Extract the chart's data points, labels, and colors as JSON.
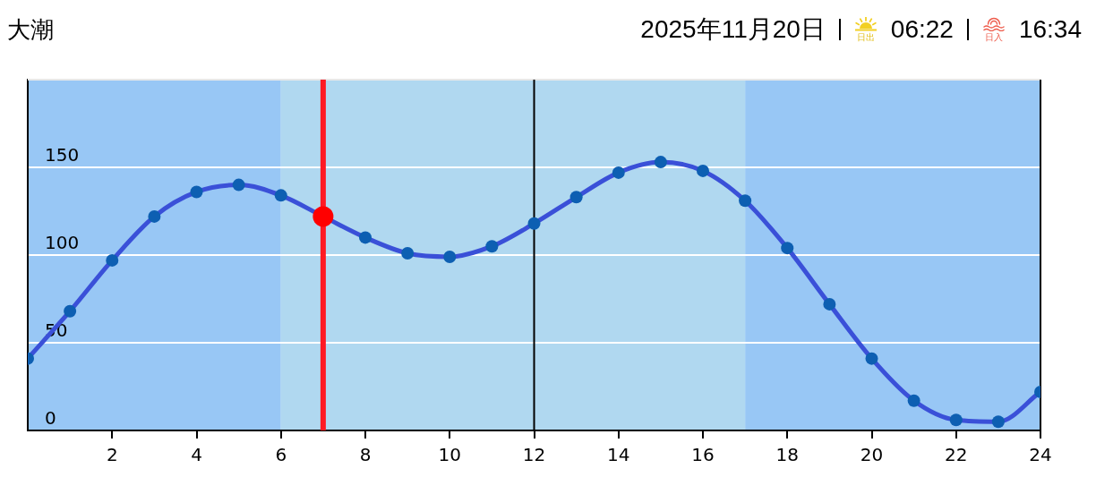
{
  "chart_data": {
    "type": "line",
    "title": "大潮",
    "subtitle": "2025年11月20日",
    "annotations": [
      "日出",
      "06:22",
      "日入",
      "16:34"
    ],
    "x": [
      0,
      1,
      2,
      3,
      4,
      5,
      6,
      7,
      8,
      9,
      10,
      11,
      12,
      13,
      14,
      15,
      16,
      17,
      18,
      19,
      20,
      21,
      22,
      23,
      24
    ],
    "values": [
      41,
      68,
      97,
      122,
      136,
      140,
      134,
      122,
      110,
      101,
      99,
      105,
      118,
      133,
      147,
      153,
      148,
      131,
      104,
      72,
      41,
      17,
      6,
      5,
      22
    ],
    "color": "#3a50d8",
    "colors": [
      "#0d5fb2",
      "#0d5fb2",
      "#0d5fb2",
      "#0d5fb2",
      "#0d5fb2",
      "#0d5fb2",
      "#0d5fb2",
      "#ff0000",
      "#0d5fb2",
      "#0d5fb2",
      "#0d5fb2",
      "#0d5fb2",
      "#0d5fb2",
      "#0d5fb2",
      "#0d5fb2",
      "#0d5fb2",
      "#0d5fb2",
      "#0d5fb2",
      "#0d5fb2",
      "#0d5fb2",
      "#0d5fb2",
      "#0d5fb2",
      "#0d5fb2",
      "#0d5fb2",
      "#0d5fb2"
    ],
    "xlim": [
      0,
      24
    ],
    "xticks": [
      2,
      4,
      6,
      8,
      10,
      12,
      14,
      16,
      18,
      20,
      22,
      24
    ],
    "ylim": [
      0,
      200
    ],
    "yticks": [
      0,
      50,
      100,
      150
    ],
    "grid": "y",
    "marker": "circle",
    "line_style": "solid",
    "bands": [
      {
        "axis": "x",
        "from": 0,
        "to": 6,
        "color": "#98c7f5"
      },
      {
        "axis": "x",
        "from": 6,
        "to": 17,
        "color": "#b0d8f0"
      },
      {
        "axis": "x",
        "from": 17,
        "to": 24,
        "color": "#98c7f5"
      }
    ],
    "ref_lines": [
      {
        "axis": "x",
        "value": 7,
        "color": "#ff1a24"
      },
      {
        "axis": "x",
        "value": 12,
        "color": "#000000"
      }
    ]
  }
}
